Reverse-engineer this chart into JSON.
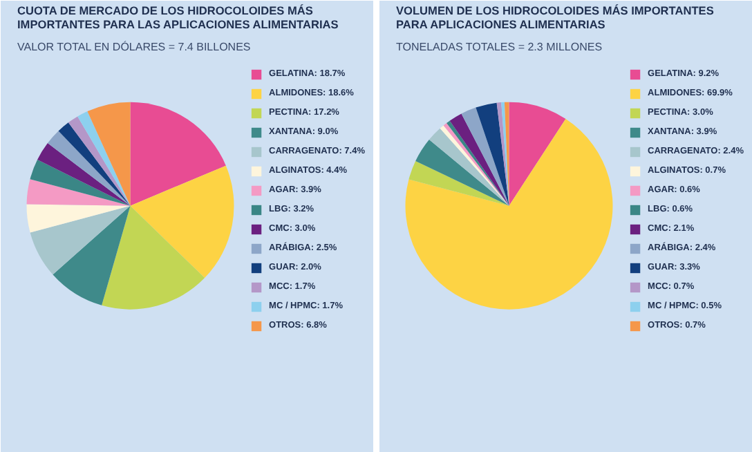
{
  "chart_data": [
    {
      "type": "pie",
      "title": "CUOTA DE MERCADO DE LOS HIDROCOLOIDES MÁS IMPORTANTES PARA LAS APLICACIONES ALIMENTARIAS",
      "subtitle": "VALOR TOTAL EN DÓLARES = 7.4 BILLONES",
      "categories": [
        "GELATINA",
        "ALMIDONES",
        "PECTINA",
        "XANTANA",
        "CARRAGENATO",
        "ALGINATOS",
        "AGAR",
        "LBG",
        "CMC",
        "ARÁBIGA",
        "GUAR",
        "MCC",
        "MC / HPMC",
        "OTROS"
      ],
      "values": [
        18.7,
        18.6,
        17.2,
        9.0,
        7.4,
        4.4,
        3.9,
        3.2,
        3.0,
        2.5,
        2.0,
        1.7,
        1.7,
        6.8
      ],
      "value_labels": [
        "18.7%",
        "18.6%",
        "17.2%",
        "9.0%",
        "7.4%",
        "4.4%",
        "3.9%",
        "3.2%",
        "3.0%",
        "2.5%",
        "2.0%",
        "1.7%",
        "1.7%",
        "6.8%"
      ],
      "colors": [
        "#e84c93",
        "#fdd344",
        "#c2d654",
        "#3f8a8a",
        "#a7c6cc",
        "#fef5dc",
        "#f49ac4",
        "#3a8686",
        "#6b2080",
        "#8da6c8",
        "#123f7e",
        "#b497c8",
        "#8dd0ee",
        "#f5974a"
      ],
      "legend": "right"
    },
    {
      "type": "pie",
      "title": "VOLUMEN DE LOS HIDROCOLOIDES MÁS IMPORTANTES PARA APLICACIONES ALIMENTARIAS",
      "subtitle": "TONELADAS TOTALES = 2.3 MILLONES",
      "categories": [
        "GELATINA",
        "ALMIDONES",
        "PECTINA",
        "XANTANA",
        "CARRAGENATO",
        "ALGINATOS",
        "AGAR",
        "LBG",
        "CMC",
        "ARÁBIGA",
        "GUAR",
        "MCC",
        "MC / HPMC",
        "OTROS"
      ],
      "values": [
        9.2,
        69.9,
        3.0,
        3.9,
        2.4,
        0.7,
        0.6,
        0.6,
        2.1,
        2.4,
        3.3,
        0.7,
        0.5,
        0.7
      ],
      "value_labels": [
        "9.2%",
        "69.9%",
        "3.0%",
        "3.9%",
        "2.4%",
        "0.7%",
        "0.6%",
        "0.6%",
        "2.1%",
        "2.4%",
        "3.3%",
        "0.7%",
        "0.5%",
        "0.7%"
      ],
      "colors": [
        "#e84c93",
        "#fdd344",
        "#c2d654",
        "#3f8a8a",
        "#a7c6cc",
        "#fef5dc",
        "#f49ac4",
        "#3a8686",
        "#6b2080",
        "#8da6c8",
        "#123f7e",
        "#b497c8",
        "#8dd0ee",
        "#f5974a"
      ],
      "legend": "right"
    }
  ]
}
